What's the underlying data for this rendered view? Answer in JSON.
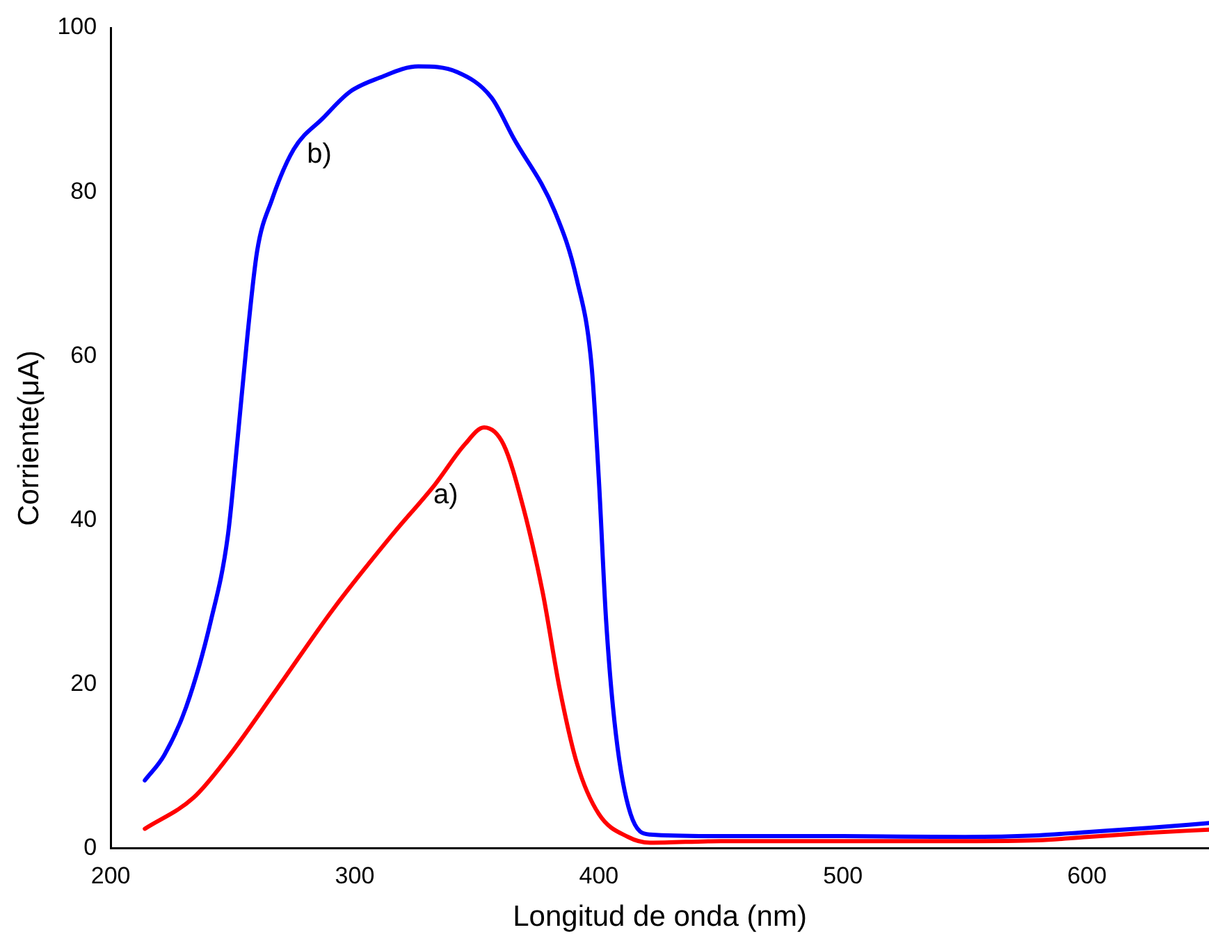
{
  "chart_data": {
    "type": "line",
    "xlabel": "Longitud de onda (nm)",
    "ylabel": "Corriente(μA)",
    "xlim": [
      200,
      650
    ],
    "xticks": [
      200,
      300,
      400,
      500,
      600
    ],
    "ylim": [
      0,
      100
    ],
    "yticks": [
      0,
      20,
      40,
      60,
      80,
      100
    ],
    "grid": false,
    "legend": false,
    "marker": "none",
    "line_style": "solid",
    "annotations": [
      "a)",
      "b)"
    ],
    "series": [
      {
        "color": "#ff0000",
        "x": [
          214,
          234,
          248,
          268,
          291,
          315,
          333,
          345,
          353,
          361,
          369,
          377,
          384,
          391,
          400,
          412,
          421,
          450,
          500,
          550,
          580,
          600,
          625,
          650
        ],
        "values": [
          2.4,
          6.2,
          11.1,
          19.4,
          29.1,
          38.1,
          44.4,
          49.2,
          51.3,
          49.2,
          41.6,
          31.2,
          19.4,
          10.4,
          4.2,
          1.4,
          0.7,
          0.9,
          0.9,
          0.9,
          1.0,
          1.4,
          1.9,
          2.3
        ]
      },
      {
        "color": "#0000ff",
        "x": [
          214,
          222,
          231,
          241,
          248,
          252,
          256,
          260,
          266,
          275,
          287,
          298,
          310,
          326,
          342,
          356,
          365,
          382,
          391,
          397,
          400,
          403,
          407,
          413,
          421,
          450,
          500,
          550,
          580,
          600,
          625,
          650
        ],
        "values": [
          8.3,
          11.4,
          17.3,
          27.7,
          38.1,
          49.9,
          62.4,
          72.8,
          79,
          85.2,
          89,
          92.2,
          93.9,
          95.3,
          94.6,
          91.5,
          86.6,
          77.6,
          69.3,
          58.9,
          45,
          27.7,
          13.9,
          4.2,
          1.7,
          1.5,
          1.5,
          1.4,
          1.6,
          2.0,
          2.5,
          3.1
        ]
      }
    ]
  }
}
